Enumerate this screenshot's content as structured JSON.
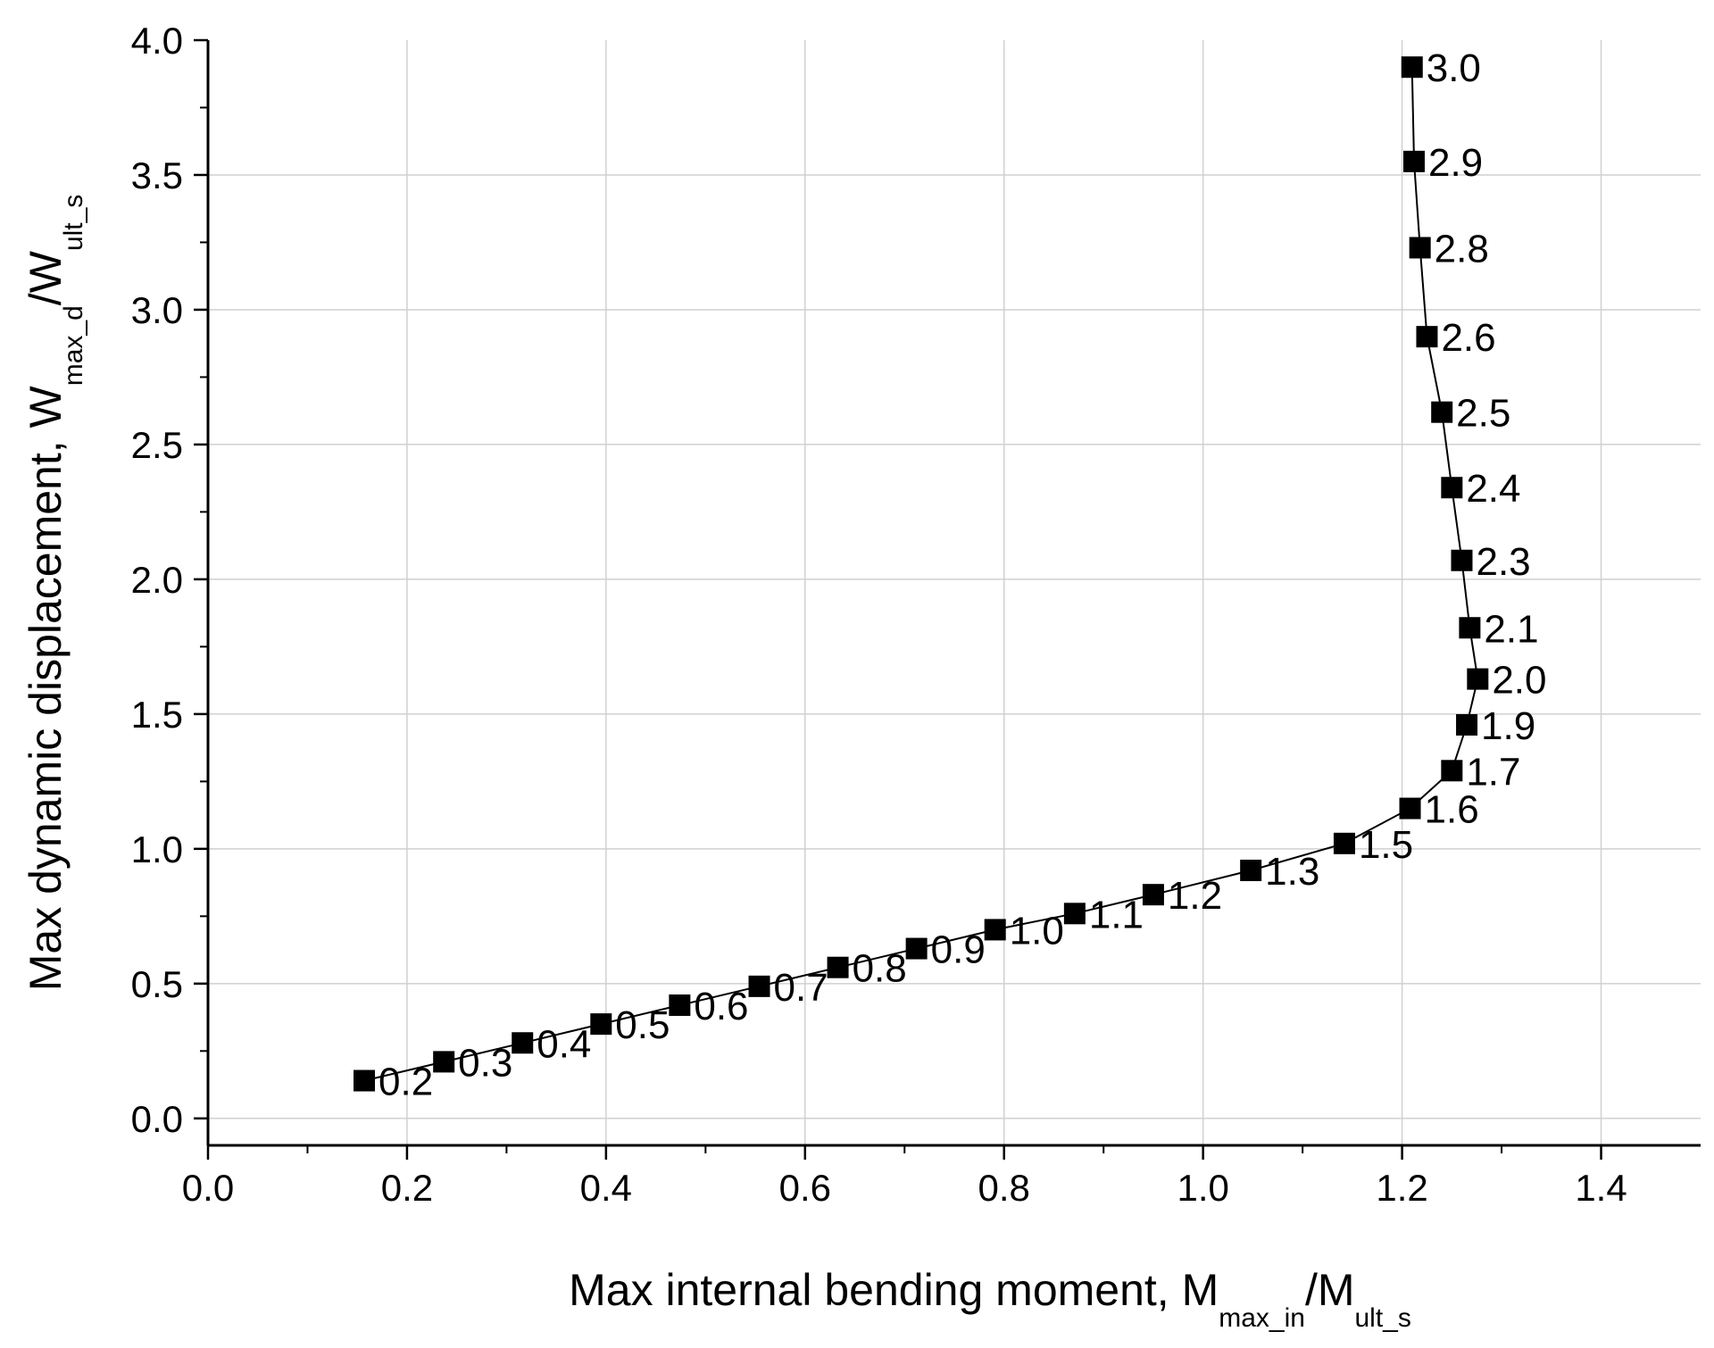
{
  "chart_data": {
    "type": "line",
    "title": "",
    "xlabel": {
      "main": "Max internal bending moment, M",
      "sub1": "max_in",
      "mid": "/M",
      "sub2": "ult_s"
    },
    "ylabel": {
      "main": "Max dynamic displacement, W",
      "sub1": "max_d",
      "mid": "/W",
      "sub2": "ult_s"
    },
    "xlim": [
      0.0,
      1.5
    ],
    "ylim": [
      -0.1,
      4.0
    ],
    "x_ticks": [
      "0.0",
      "0.2",
      "0.4",
      "0.6",
      "0.8",
      "1.0",
      "1.2",
      "1.4"
    ],
    "y_ticks": [
      "0.0",
      "0.5",
      "1.0",
      "1.5",
      "2.0",
      "2.5",
      "3.0",
      "3.5",
      "4.0"
    ],
    "grid": true,
    "marker": "square",
    "color": "#000000",
    "series": [
      {
        "points": [
          {
            "x": 0.157,
            "y": 0.14,
            "label": "0.2"
          },
          {
            "x": 0.237,
            "y": 0.21,
            "label": "0.3"
          },
          {
            "x": 0.316,
            "y": 0.28,
            "label": "0.4"
          },
          {
            "x": 0.395,
            "y": 0.35,
            "label": "0.5"
          },
          {
            "x": 0.474,
            "y": 0.42,
            "label": "0.6"
          },
          {
            "x": 0.554,
            "y": 0.49,
            "label": "0.7"
          },
          {
            "x": 0.633,
            "y": 0.56,
            "label": "0.8"
          },
          {
            "x": 0.712,
            "y": 0.63,
            "label": "0.9"
          },
          {
            "x": 0.791,
            "y": 0.7,
            "label": "1.0"
          },
          {
            "x": 0.871,
            "y": 0.76,
            "label": "1.1"
          },
          {
            "x": 0.95,
            "y": 0.83,
            "label": "1.2"
          },
          {
            "x": 1.048,
            "y": 0.92,
            "label": "1.3"
          },
          {
            "x": 1.142,
            "y": 1.02,
            "label": "1.5"
          },
          {
            "x": 1.208,
            "y": 1.15,
            "label": "1.6"
          },
          {
            "x": 1.25,
            "y": 1.29,
            "label": "1.7"
          },
          {
            "x": 1.265,
            "y": 1.46,
            "label": "1.9"
          },
          {
            "x": 1.276,
            "y": 1.63,
            "label": "2.0"
          },
          {
            "x": 1.268,
            "y": 1.82,
            "label": "2.1"
          },
          {
            "x": 1.26,
            "y": 2.07,
            "label": "2.3"
          },
          {
            "x": 1.25,
            "y": 2.34,
            "label": "2.4"
          },
          {
            "x": 1.24,
            "y": 2.62,
            "label": "2.5"
          },
          {
            "x": 1.225,
            "y": 2.9,
            "label": "2.6"
          },
          {
            "x": 1.218,
            "y": 3.23,
            "label": "2.8"
          },
          {
            "x": 1.212,
            "y": 3.55,
            "label": "2.9"
          },
          {
            "x": 1.21,
            "y": 3.9,
            "label": "3.0"
          }
        ]
      }
    ]
  }
}
